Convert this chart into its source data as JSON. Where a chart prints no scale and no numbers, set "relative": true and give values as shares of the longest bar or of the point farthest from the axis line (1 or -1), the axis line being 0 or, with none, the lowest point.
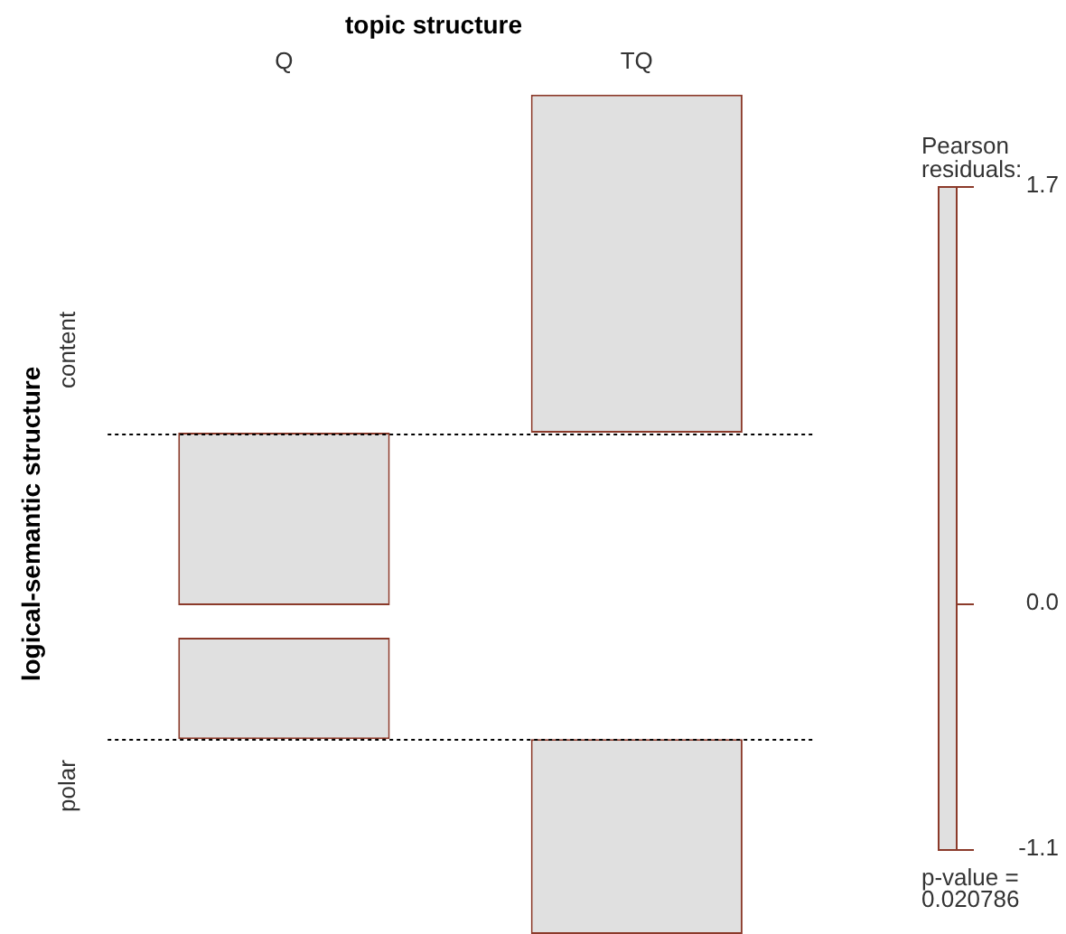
{
  "chart_data": [
    {
      "type": "bar",
      "title": "topic structure",
      "categories": [
        "Q",
        "TQ"
      ],
      "values": [
        -0.51,
        1
      ],
      "color": "#e0e0e0",
      "relative": true,
      "ylabel": "content",
      "ref_lines": [
        {
          "axis": "y",
          "value": 0,
          "color": "#000000",
          "line_style": "dotted"
        }
      ],
      "annotations": [
        "logical-semantic structure",
        "Pearson residuals:",
        "1.7",
        "0.0",
        "-1.1",
        "p-value = 0.020786"
      ]
    },
    {
      "type": "bar",
      "categories": [
        null,
        null
      ],
      "values": [
        0.52,
        -1
      ],
      "color": "#e0e0e0",
      "relative": true,
      "ylabel": "polar",
      "tick_labels": false,
      "ref_lines": [
        {
          "axis": "y",
          "value": 0,
          "color": "#000000",
          "line_style": "dotted"
        }
      ]
    }
  ]
}
